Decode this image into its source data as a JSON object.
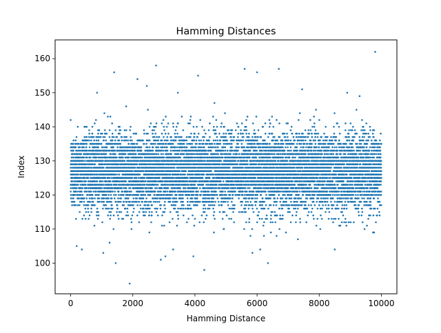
{
  "chart_data": {
    "type": "scatter",
    "title": "Hamming Distances",
    "xlabel": "Hamming Distance",
    "ylabel": "Index",
    "xlim": [
      -500,
      10500
    ],
    "ylim": [
      91,
      165.5
    ],
    "x_ticks": [
      0,
      2000,
      4000,
      6000,
      8000,
      10000
    ],
    "x_tick_labels": [
      "0",
      "2000",
      "4000",
      "6000",
      "8000",
      "10000"
    ],
    "y_ticks": [
      100,
      110,
      120,
      130,
      140,
      150,
      160
    ],
    "y_tick_labels": [
      "100",
      "110",
      "120",
      "130",
      "140",
      "150",
      "160"
    ],
    "grid": false,
    "legend": "none",
    "marker_color": "#1f77b4",
    "series": [
      {
        "name": "hamming_distance",
        "description": "Approximately 10000 points, x = index 0–9999, y integer values mostly within 111–143, centered near 127",
        "bulk_range": [
          111,
          143
        ],
        "center": 127,
        "outliers": [
          {
            "x": 1900,
            "y": 94
          },
          {
            "x": 1450,
            "y": 100
          },
          {
            "x": 6350,
            "y": 100
          },
          {
            "x": 4300,
            "y": 98
          },
          {
            "x": 2900,
            "y": 101
          },
          {
            "x": 3050,
            "y": 102
          },
          {
            "x": 3950,
            "y": 102
          },
          {
            "x": 1050,
            "y": 103
          },
          {
            "x": 5850,
            "y": 103
          },
          {
            "x": 3300,
            "y": 104
          },
          {
            "x": 6100,
            "y": 104
          },
          {
            "x": 8500,
            "y": 104
          },
          {
            "x": 1400,
            "y": 156
          },
          {
            "x": 5600,
            "y": 157
          },
          {
            "x": 6700,
            "y": 157
          },
          {
            "x": 2750,
            "y": 158
          },
          {
            "x": 4100,
            "y": 155
          },
          {
            "x": 2150,
            "y": 154
          },
          {
            "x": 2450,
            "y": 152
          },
          {
            "x": 6000,
            "y": 156
          },
          {
            "x": 9800,
            "y": 162
          },
          {
            "x": 7450,
            "y": 151
          },
          {
            "x": 8900,
            "y": 150
          },
          {
            "x": 3450,
            "y": 150
          },
          {
            "x": 850,
            "y": 150
          },
          {
            "x": 9300,
            "y": 149
          }
        ]
      }
    ]
  }
}
